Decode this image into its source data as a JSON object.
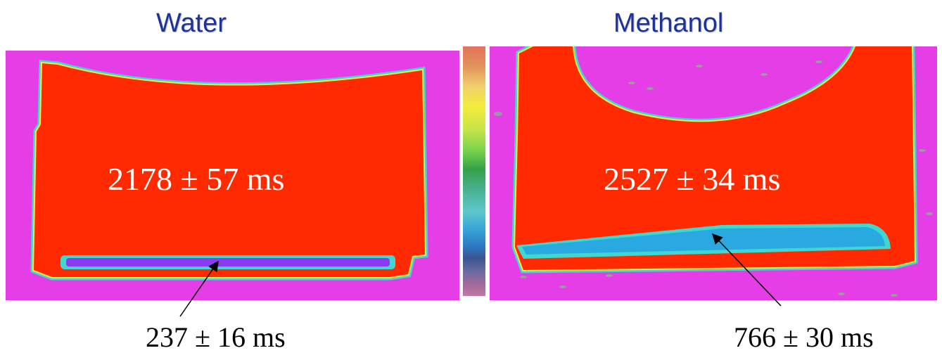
{
  "panels": [
    {
      "title": "Water",
      "main_t1": "2178 ± 57 ms",
      "layer_t1": "237 ± 16 ms"
    },
    {
      "title": "Methanol",
      "main_t1": "2527 ± 34 ms",
      "layer_t1": "766 ± 30 ms"
    }
  ],
  "colors": {
    "background_region": "#e63ee6",
    "sample_region": "#ff2a00",
    "water_layer": "#8a3af0",
    "methanol_layer": "#2aa8e0",
    "title_text": "#1e3399"
  },
  "colorbar": {
    "top_color": "#e1735a",
    "bottom_color": "#c27aa5"
  }
}
